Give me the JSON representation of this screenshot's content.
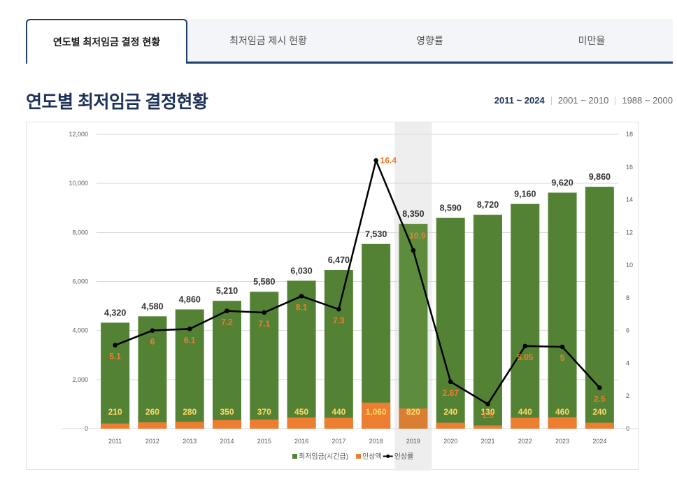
{
  "tabs": [
    {
      "label": "연도별 최저임금 결정 현황",
      "active": true
    },
    {
      "label": "최저임금 제시 현황",
      "active": false
    },
    {
      "label": "영향률",
      "active": false
    },
    {
      "label": "미만율",
      "active": false
    }
  ],
  "page_title": "연도별 최저임금 결정현황",
  "ranges": [
    {
      "label": "2011 ~ 2024",
      "active": true
    },
    {
      "label": "2001 ~ 2010",
      "active": false
    },
    {
      "label": "1988 ~ 2000",
      "active": false
    }
  ],
  "colors": {
    "wage": "#548235",
    "wage_highlight": "#5e8c3d",
    "increase": "#ed7d31",
    "rate_line": "#000000",
    "rate_label": "#ed7d31",
    "increase_label": "#ffd966",
    "highlight_band": "#eeeeee",
    "tab_border": "#1c3f6b"
  },
  "chart_data": {
    "type": "bar",
    "categories": [
      "2011",
      "2012",
      "2013",
      "2014",
      "2015",
      "2016",
      "2017",
      "2018",
      "2019",
      "2020",
      "2021",
      "2022",
      "2023",
      "2024"
    ],
    "highlight_category": "2019",
    "series": [
      {
        "name": "최저임금(시간급)",
        "type": "bar",
        "axis": "left",
        "values": [
          4320,
          4580,
          4860,
          5210,
          5580,
          6030,
          6470,
          7530,
          8350,
          8590,
          8720,
          9160,
          9620,
          9860
        ],
        "labels": [
          "4,320",
          "4,580",
          "4,860",
          "5,210",
          "5,580",
          "6,030",
          "6,470",
          "7,530",
          "8,350",
          "8,590",
          "8,720",
          "9,160",
          "9,620",
          "9,860"
        ]
      },
      {
        "name": "인상액",
        "type": "bar",
        "axis": "left",
        "values": [
          210,
          260,
          280,
          350,
          370,
          450,
          440,
          1060,
          820,
          240,
          130,
          440,
          460,
          240
        ],
        "labels": [
          "210",
          "260",
          "280",
          "350",
          "370",
          "450",
          "440",
          "1,060",
          "820",
          "240",
          "130",
          "440",
          "460",
          "240"
        ]
      },
      {
        "name": "인상률",
        "type": "line",
        "axis": "right",
        "values": [
          5.1,
          6,
          6.1,
          7.2,
          7.1,
          8.1,
          7.3,
          16.4,
          10.9,
          2.87,
          1.5,
          5.05,
          5,
          2.5
        ],
        "labels": [
          "5.1",
          "6",
          "6.1",
          "7.2",
          "7.1",
          "8.1",
          "7.3",
          "16.4",
          "10.9",
          "2.87",
          "1.5",
          "5.05",
          "5",
          "2.5"
        ]
      }
    ],
    "y_left": {
      "min": 0,
      "max": 12000,
      "ticks": [
        "0",
        "2,000",
        "4,000",
        "6,000",
        "8,000",
        "10,000",
        "12,000"
      ],
      "tick_values": [
        0,
        2000,
        4000,
        6000,
        8000,
        10000,
        12000
      ]
    },
    "y_right": {
      "min": 0,
      "max": 18,
      "ticks": [
        "0",
        "2",
        "4",
        "6",
        "8",
        "10",
        "12",
        "14",
        "16",
        "18"
      ],
      "tick_values": [
        0,
        2,
        4,
        6,
        8,
        10,
        12,
        14,
        16,
        18
      ]
    },
    "legend": [
      {
        "label": "최저임금(시간급)",
        "marker": "square"
      },
      {
        "label": "인상액",
        "marker": "square"
      },
      {
        "label": "인상률",
        "marker": "line"
      }
    ],
    "legend_position": "bottom",
    "grid": true
  }
}
